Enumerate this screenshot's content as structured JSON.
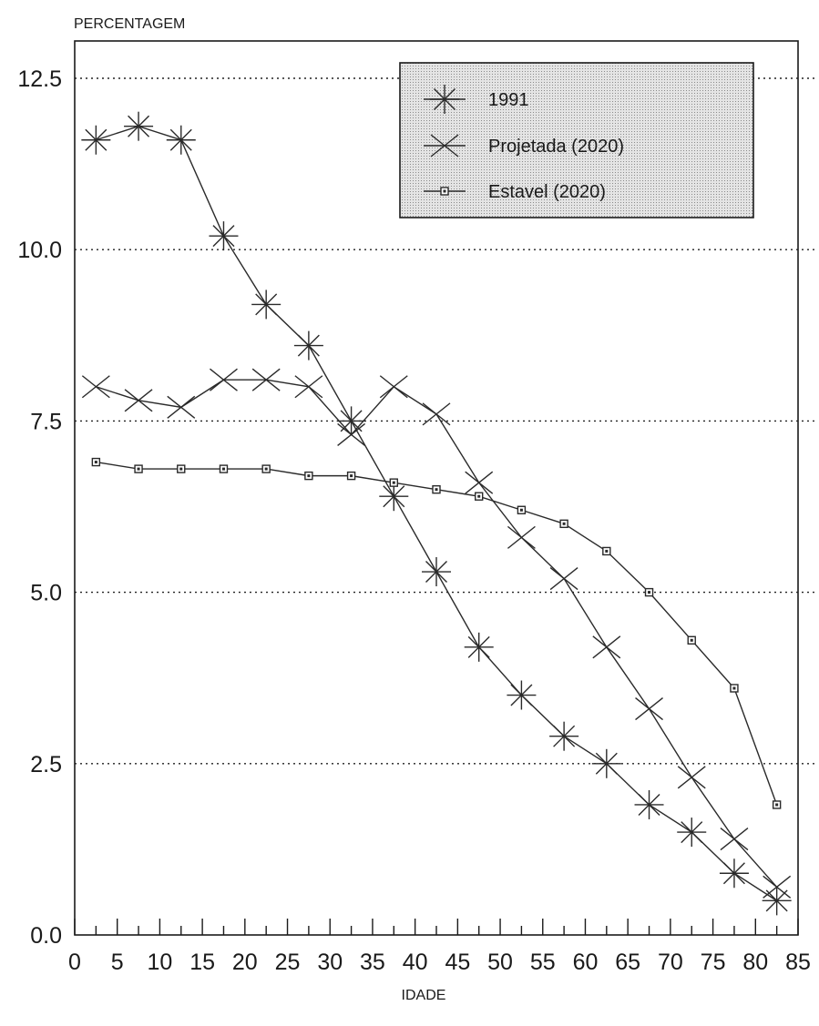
{
  "chart_data": {
    "type": "line",
    "ylabel": "PERCENTAGEM",
    "xlabel": "IDADE",
    "xlim": [
      0,
      85
    ],
    "ylim": [
      0,
      12.5
    ],
    "xticks": [
      0,
      5,
      10,
      15,
      20,
      25,
      30,
      35,
      40,
      45,
      50,
      55,
      60,
      65,
      70,
      75,
      80,
      85
    ],
    "yticks": [
      0.0,
      2.5,
      5.0,
      7.5,
      10.0,
      12.5
    ],
    "ytick_labels": [
      "0.0",
      "2.5",
      "5.0",
      "7.5",
      "10.0",
      "12.5"
    ],
    "grid": "horizontal dotted",
    "legend_position": "top-right",
    "legend_background": "#d9d9d9",
    "x": [
      2.5,
      7.5,
      12.5,
      17.5,
      22.5,
      27.5,
      32.5,
      37.5,
      42.5,
      47.5,
      52.5,
      57.5,
      62.5,
      67.5,
      72.5,
      77.5,
      82.5
    ],
    "series": [
      {
        "name": "1991",
        "marker": "asterisk",
        "values": [
          11.6,
          11.8,
          11.6,
          10.2,
          9.2,
          8.6,
          7.5,
          6.4,
          5.3,
          4.2,
          3.5,
          2.9,
          2.5,
          1.9,
          1.5,
          0.9,
          0.5
        ]
      },
      {
        "name": "Projetada (2020)",
        "marker": "cross",
        "values": [
          8.0,
          7.8,
          7.7,
          8.1,
          8.1,
          8.0,
          7.3,
          8.0,
          7.6,
          6.6,
          5.8,
          5.2,
          4.2,
          3.3,
          2.3,
          1.4,
          0.7
        ]
      },
      {
        "name": "Estavel (2020)",
        "marker": "square",
        "values": [
          6.9,
          6.8,
          6.8,
          6.8,
          6.8,
          6.7,
          6.7,
          6.6,
          6.5,
          6.4,
          6.2,
          6.0,
          5.6,
          5.0,
          4.3,
          3.6,
          1.9
        ]
      }
    ]
  }
}
